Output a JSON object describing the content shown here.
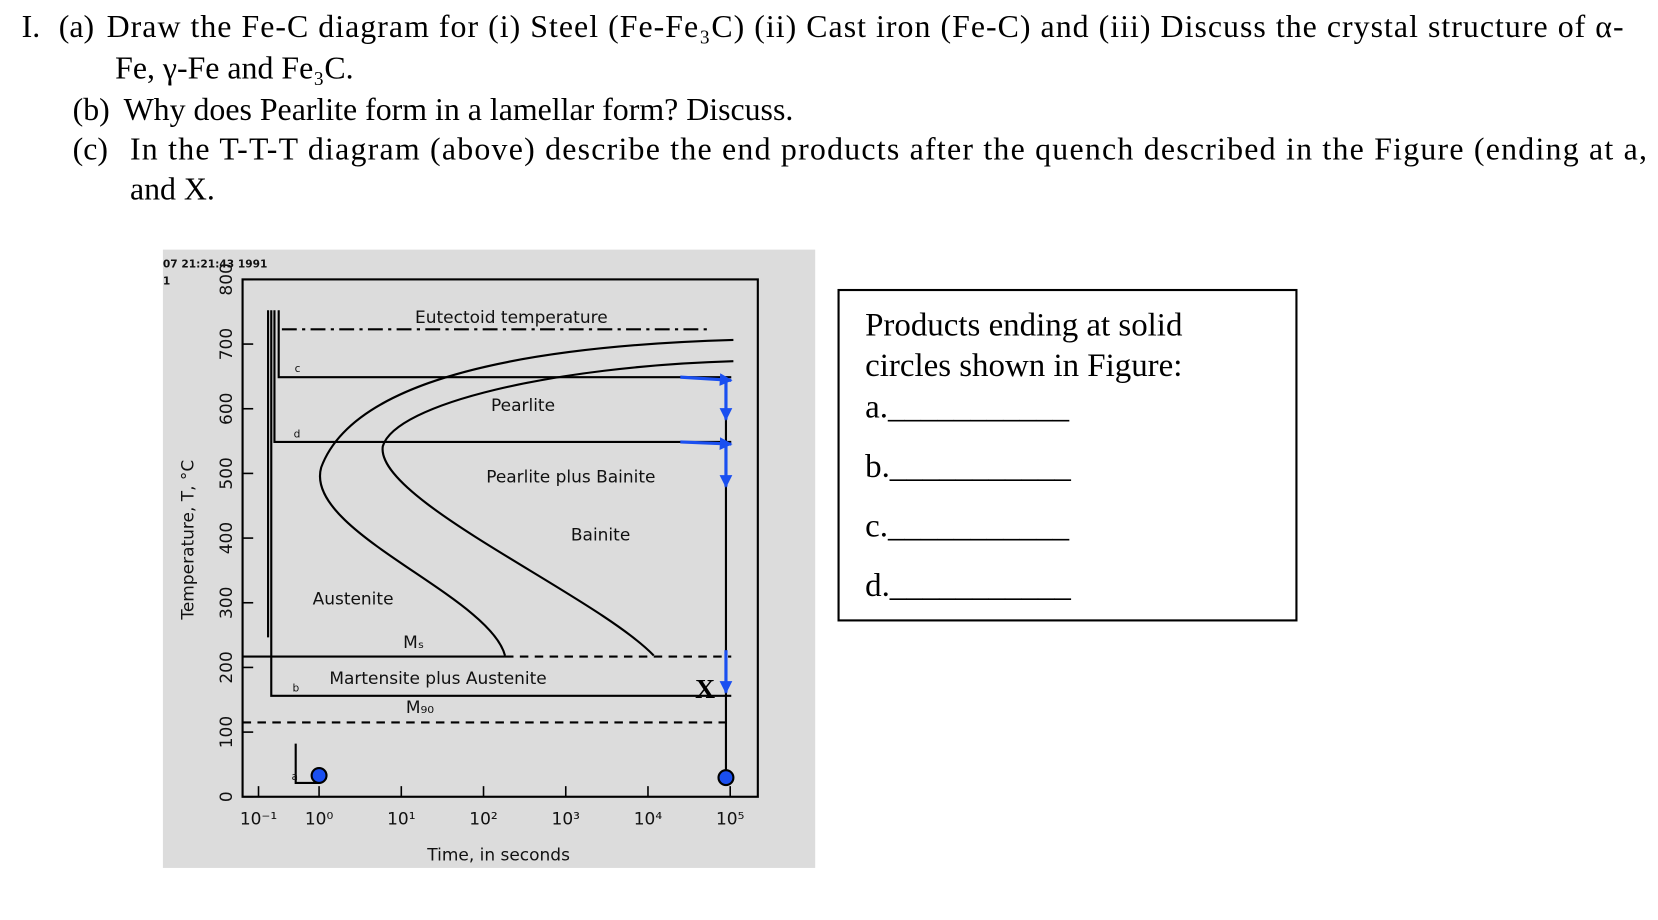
{
  "question": {
    "number": "I.",
    "parts": [
      {
        "label": "(a)",
        "lines": [
          "Draw the Fe-C diagram for (i) Steel (Fe-Fe₃C) (ii) Cast iron (Fe-C) and (iii) Discuss the crystal structure of α-",
          "Fe,  γ-Fe and  Fe₃C."
        ]
      },
      {
        "label": "(b)",
        "lines": [
          "Why does Pearlite form in a lamellar form? Discuss."
        ]
      },
      {
        "label": "(c)",
        "lines": [
          "In the T-T-T diagram (above) describe the end products after the quench described in the Figure (ending at a,",
          "and X."
        ]
      }
    ]
  },
  "figure": {
    "stamp": "07 21:21:43 1991",
    "stamp_line2": "1",
    "y_axis_label": "Temperature, T, °C",
    "y_tick_labels": [
      "0",
      "100",
      "200",
      "300",
      "400",
      "500",
      "600",
      "700",
      "800"
    ],
    "x_tick_labels": [
      "10⁻¹",
      "10⁰",
      "10¹",
      "10²",
      "10³",
      "10⁴",
      "10⁵"
    ],
    "x_axis_label": "Time, in seconds",
    "regions": {
      "eutectoid": "Eutectoid temperature",
      "pearlite": "Pearlite",
      "pearlite_bainite": "Pearlite plus Bainite",
      "bainite": "Bainite",
      "austenite": "Austenite",
      "ms": "Mₛ",
      "martensite_austenite": "Martensite plus Austenite",
      "m90": "M₉₀"
    },
    "path_labels": {
      "a": "a",
      "b": "b",
      "c": "c",
      "d": "d",
      "x": "X"
    }
  },
  "answer_box": {
    "lines": [
      "Products ending at solid",
      "circles shown in Figure:"
    ],
    "items": [
      "a.___________",
      "b.___________",
      "c.___________",
      "d.___________"
    ]
  }
}
